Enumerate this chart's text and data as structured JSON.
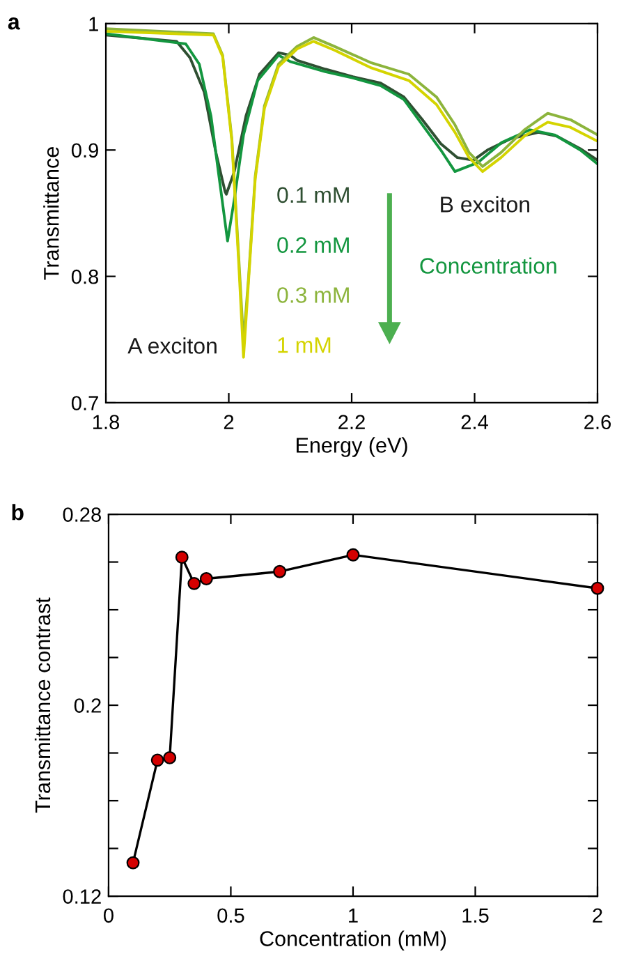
{
  "chart_data": [
    {
      "type": "line",
      "title": "a",
      "xlabel": "Energy (eV)",
      "ylabel": "Transmittance",
      "xlim": [
        1.8,
        2.6
      ],
      "ylim": [
        0.7,
        1
      ],
      "xticks": [
        1.8,
        {
          "value": 2.0,
          "label": "2"
        },
        2.2,
        2.4,
        2.6
      ],
      "yticks": [
        0.7,
        0.8,
        0.9,
        {
          "value": 1.0,
          "label": "1"
        }
      ],
      "grid": false,
      "legend": false,
      "marker": "none",
      "line_style": "solid",
      "series": [
        {
          "name": "0.1 mM",
          "color": "#2f4f32",
          "x": [
            1.8,
            1.915,
            1.937,
            1.96,
            1.979,
            1.994,
            1.996,
            2.009,
            2.028,
            2.05,
            2.081,
            2.1,
            2.111,
            2.157,
            2.202,
            2.247,
            2.285,
            2.315,
            2.345,
            2.372,
            2.398,
            2.421,
            2.459,
            2.504,
            2.534,
            2.572,
            2.6
          ],
          "values": [
            0.991,
            0.986,
            0.973,
            0.946,
            0.898,
            0.867,
            0.865,
            0.883,
            0.927,
            0.96,
            0.977,
            0.975,
            0.971,
            0.964,
            0.958,
            0.953,
            0.942,
            0.924,
            0.905,
            0.894,
            0.892,
            0.9,
            0.909,
            0.914,
            0.911,
            0.901,
            0.892
          ]
        },
        {
          "name": "0.2 mM",
          "color": "#13963f",
          "x": [
            1.8,
            1.93,
            1.952,
            1.971,
            1.986,
            1.998,
            2.009,
            2.024,
            2.047,
            2.081,
            2.1,
            2.157,
            2.202,
            2.247,
            2.285,
            2.315,
            2.345,
            2.368,
            2.405,
            2.444,
            2.49,
            2.53,
            2.572,
            2.6
          ],
          "values": [
            0.992,
            0.984,
            0.968,
            0.927,
            0.872,
            0.828,
            0.861,
            0.912,
            0.955,
            0.975,
            0.97,
            0.962,
            0.957,
            0.951,
            0.94,
            0.92,
            0.9,
            0.883,
            0.89,
            0.906,
            0.916,
            0.912,
            0.9,
            0.889
          ]
        },
        {
          "name": "0.3 mM",
          "color": "#8cb43c",
          "x": [
            1.8,
            1.975,
            1.99,
            2.005,
            2.016,
            2.024,
            2.032,
            2.043,
            2.058,
            2.081,
            2.111,
            2.138,
            2.172,
            2.232,
            2.293,
            2.338,
            2.368,
            2.391,
            2.413,
            2.443,
            2.481,
            2.519,
            2.556,
            2.6
          ],
          "values": [
            0.996,
            0.992,
            0.975,
            0.909,
            0.817,
            0.748,
            0.798,
            0.879,
            0.935,
            0.968,
            0.982,
            0.989,
            0.982,
            0.969,
            0.96,
            0.942,
            0.92,
            0.898,
            0.887,
            0.898,
            0.916,
            0.929,
            0.924,
            0.912
          ]
        },
        {
          "name": "1 mM",
          "color": "#d4d400",
          "x": [
            1.8,
            1.975,
            1.99,
            2.005,
            2.016,
            2.024,
            2.032,
            2.043,
            2.058,
            2.081,
            2.111,
            2.138,
            2.172,
            2.232,
            2.293,
            2.338,
            2.368,
            2.391,
            2.413,
            2.443,
            2.481,
            2.519,
            2.556,
            2.6
          ],
          "values": [
            0.994,
            0.991,
            0.974,
            0.907,
            0.812,
            0.736,
            0.795,
            0.877,
            0.933,
            0.966,
            0.98,
            0.986,
            0.979,
            0.965,
            0.955,
            0.936,
            0.914,
            0.894,
            0.883,
            0.894,
            0.911,
            0.922,
            0.918,
            0.907
          ]
        }
      ],
      "annotations": [
        "A exciton",
        "B exciton",
        "Concentration"
      ]
    },
    {
      "type": "line",
      "title": "b",
      "xlabel": "Concentration (mM)",
      "ylabel": "Transmittance contrast",
      "xlim": [
        0,
        2
      ],
      "ylim": [
        0.12,
        0.28
      ],
      "xticks": [
        0,
        0.5,
        1,
        1.5,
        2
      ],
      "yticks": [
        0.12,
        {
          "value": 0.14,
          "label": null
        },
        {
          "value": 0.16,
          "label": null
        },
        {
          "value": 0.18,
          "label": null
        },
        0.2,
        {
          "value": 0.22,
          "label": null
        },
        {
          "value": 0.24,
          "label": null
        },
        {
          "value": 0.26,
          "label": null
        },
        0.28
      ],
      "grid": false,
      "legend": false,
      "marker": "circle",
      "line_style": "solid",
      "series": [
        {
          "color": "#000000",
          "colors": [
            "#d40000",
            "#d40000",
            "#d40000",
            "#d40000",
            "#d40000",
            "#d40000",
            "#d40000",
            "#d40000",
            "#d40000"
          ],
          "x": [
            0.1,
            0.2,
            0.25,
            0.3,
            0.35,
            0.4,
            0.7,
            1,
            2
          ],
          "values": [
            0.134,
            0.177,
            0.178,
            0.262,
            0.251,
            0.253,
            0.256,
            0.263,
            0.249
          ]
        }
      ]
    }
  ]
}
